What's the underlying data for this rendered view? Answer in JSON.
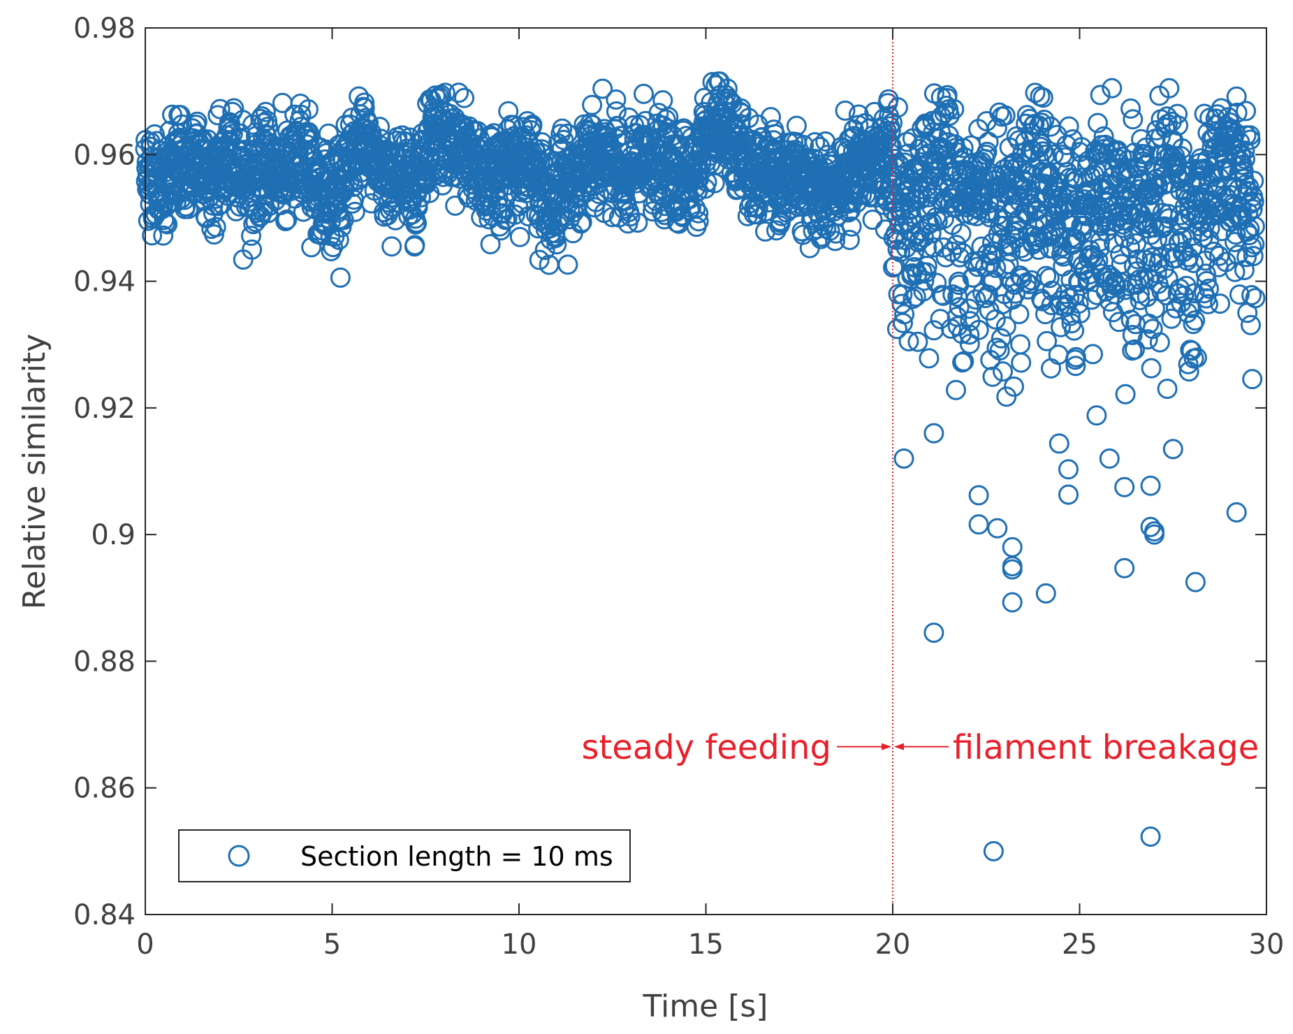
{
  "chart_data": {
    "type": "scatter",
    "title": "",
    "xlabel": "Time [s]",
    "ylabel": "Relative similarity",
    "xlim": [
      0,
      30
    ],
    "ylim": [
      0.84,
      0.98
    ],
    "xticks": [
      0,
      5,
      10,
      15,
      20,
      25,
      30
    ],
    "xtick_labels": [
      "0",
      "5",
      "10",
      "15",
      "20",
      "25",
      "30"
    ],
    "yticks": [
      0.84,
      0.86,
      0.88,
      0.9,
      0.92,
      0.94,
      0.96,
      0.98
    ],
    "ytick_labels": [
      "0.84",
      "0.86",
      "0.88",
      "0.9",
      "0.92",
      "0.94",
      "0.96",
      "0.98"
    ],
    "grid": false,
    "legend": {
      "location": "bottom-left",
      "entries": [
        "Section length = 10 ms"
      ]
    },
    "marker": {
      "shape": "open-circle",
      "color": "#1f6fb4"
    },
    "series": [
      {
        "name": "Section length = 10 ms",
        "color": "#1f6fb4",
        "segments": [
          {
            "x_from": 0,
            "x_to": 20,
            "n_points": 2000,
            "center": 0.9575,
            "spread": 0.005,
            "min": 0.9385,
            "max": 0.9745
          },
          {
            "x_from": 20,
            "x_to": 29.7,
            "n_points": 970,
            "center": 0.953,
            "spread": 0.008,
            "min": 0.85,
            "max": 0.9705
          }
        ],
        "notable_points": [
          {
            "x": 20.3,
            "y": 0.912
          },
          {
            "x": 21.1,
            "y": 0.916
          },
          {
            "x": 21.1,
            "y": 0.8845
          },
          {
            "x": 22.3,
            "y": 0.9062
          },
          {
            "x": 22.3,
            "y": 0.9016
          },
          {
            "x": 22.8,
            "y": 0.901
          },
          {
            "x": 23.2,
            "y": 0.898
          },
          {
            "x": 23.2,
            "y": 0.895
          },
          {
            "x": 23.2,
            "y": 0.8945
          },
          {
            "x": 23.2,
            "y": 0.8893
          },
          {
            "x": 24.1,
            "y": 0.8907
          },
          {
            "x": 24.7,
            "y": 0.9103
          },
          {
            "x": 24.7,
            "y": 0.9063
          },
          {
            "x": 26.2,
            "y": 0.8947
          },
          {
            "x": 26.2,
            "y": 0.9075
          },
          {
            "x": 26.9,
            "y": 0.9077
          },
          {
            "x": 26.9,
            "y": 0.9012
          },
          {
            "x": 27.0,
            "y": 0.9005
          },
          {
            "x": 27.0,
            "y": 0.9
          },
          {
            "x": 28.1,
            "y": 0.8925
          },
          {
            "x": 29.2,
            "y": 0.9035
          },
          {
            "x": 22.7,
            "y": 0.85
          },
          {
            "x": 26.9,
            "y": 0.8523
          },
          {
            "x": 27.5,
            "y": 0.9135
          },
          {
            "x": 25.8,
            "y": 0.912
          }
        ]
      }
    ],
    "annotations": [
      {
        "type": "vline",
        "x": 20,
        "color": "#e8202a",
        "style": "dotted"
      },
      {
        "type": "text",
        "text": "steady feeding",
        "x_anchor": 20,
        "y": 0.8665,
        "side": "left",
        "color": "#e8202a",
        "arrow_to": 20
      },
      {
        "type": "text",
        "text": "filament breakage",
        "x_anchor": 20,
        "y": 0.8665,
        "side": "right",
        "color": "#e8202a",
        "arrow_to": 20
      }
    ]
  },
  "colors": {
    "marker": "#1f6fb4",
    "annotation": "#e8202a",
    "axis": "#262626",
    "text": "#404040"
  }
}
